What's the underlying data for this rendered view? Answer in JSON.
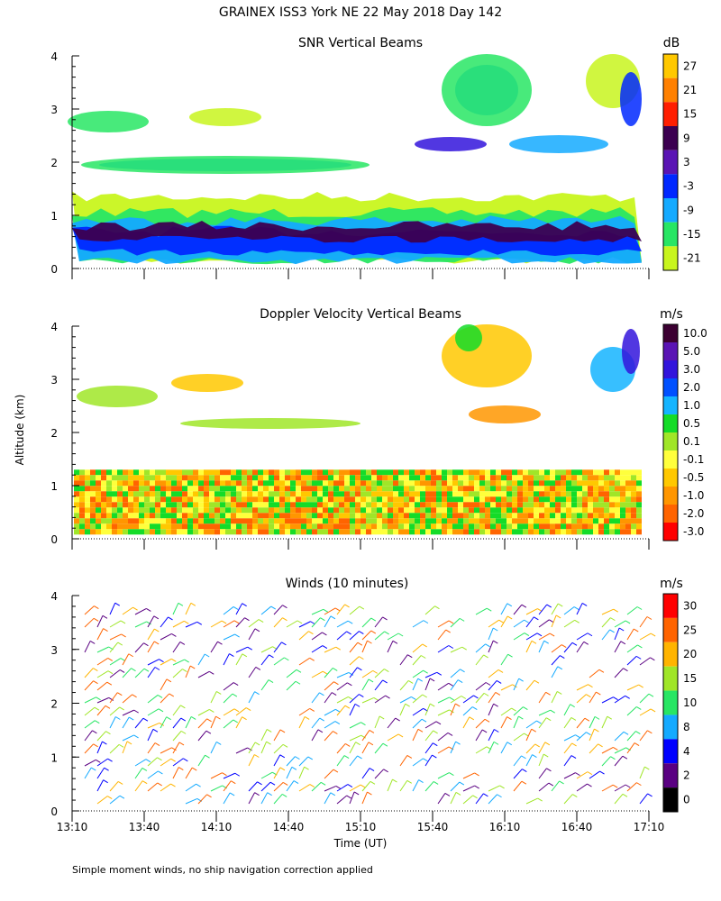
{
  "figure": {
    "title": "GRAINEX ISS3 York NE  22 May 2018 Day 142",
    "ylabel": "Altitude (km)",
    "xlabel": "Time (UT)",
    "footnote": "Simple moment winds, no ship navigation correction applied"
  },
  "chart_data": [
    {
      "type": "heatmap",
      "title": "SNR Vertical Beams",
      "unit": "dB",
      "x_ticks": [
        "13:10",
        "13:40",
        "14:10",
        "14:40",
        "15:10",
        "15:40",
        "16:10",
        "16:40",
        "17:10"
      ],
      "y_ticks": [
        "0",
        "1",
        "2",
        "3",
        "4"
      ],
      "ylim": [
        0,
        4
      ],
      "colorbar_labels": [
        "27",
        "21",
        "15",
        "9",
        "3",
        "-3",
        "-9",
        "-15",
        "-21"
      ],
      "colorbar_colors": [
        "#ffc800",
        "#ff8000",
        "#ff1e00",
        "#3c0050",
        "#5a14b4",
        "#0028ff",
        "#14aaff",
        "#28e664",
        "#c8f51e"
      ],
      "layers": [
        {
          "label": "lowest SNR band (-21 dB)",
          "color": "#c8f51e",
          "y0": 0.15,
          "y1": 1.35
        },
        {
          "label": "-15 dB band",
          "color": "#28e664",
          "y0": 0.15,
          "y1": 1.05
        },
        {
          "label": "-9 dB band",
          "color": "#14aaff",
          "y0": 0.15,
          "y1": 0.9
        },
        {
          "label": "-3 dB core",
          "color": "#0028ff",
          "y0": 0.3,
          "y1": 0.7
        },
        {
          "label": "9 dB core",
          "color": "#3c0050",
          "y0": 0.55,
          "y1": 0.8
        }
      ]
    },
    {
      "type": "heatmap",
      "title": "Doppler Velocity Vertical Beams",
      "unit": "m/s",
      "x_ticks": [
        "13:10",
        "13:40",
        "14:10",
        "14:40",
        "15:10",
        "15:40",
        "16:10",
        "16:40",
        "17:10"
      ],
      "y_ticks": [
        "0",
        "1",
        "2",
        "3",
        "4"
      ],
      "ylim": [
        0,
        4
      ],
      "colorbar_labels": [
        "10.0",
        "5.0",
        "3.0",
        "2.0",
        "1.0",
        "0.5",
        "0.1",
        "-0.1",
        "-0.5",
        "-1.0",
        "-2.0",
        "-3.0"
      ],
      "colorbar_colors": [
        "#3c0032",
        "#5a14b4",
        "#3214dc",
        "#0050ff",
        "#14b4ff",
        "#14dc28",
        "#a0e628",
        "#ffff3c",
        "#ffc800",
        "#ff9600",
        "#ff6400",
        "#ff0000"
      ]
    },
    {
      "type": "barbs",
      "title": "Winds (10 minutes)",
      "unit": "m/s",
      "x_ticks": [
        "13:10",
        "13:40",
        "14:10",
        "14:40",
        "15:10",
        "15:40",
        "16:10",
        "16:40",
        "17:10"
      ],
      "y_ticks": [
        "0",
        "1",
        "2",
        "3",
        "4"
      ],
      "ylim": [
        0,
        4
      ],
      "colorbar_labels": [
        "30",
        "25",
        "20",
        "15",
        "10",
        "8",
        "4",
        "2",
        "0"
      ],
      "colorbar_colors": [
        "#ff0000",
        "#ff6400",
        "#ffb400",
        "#a0e628",
        "#28e664",
        "#14aaff",
        "#0000ff",
        "#5a0082",
        "#000000"
      ]
    }
  ]
}
